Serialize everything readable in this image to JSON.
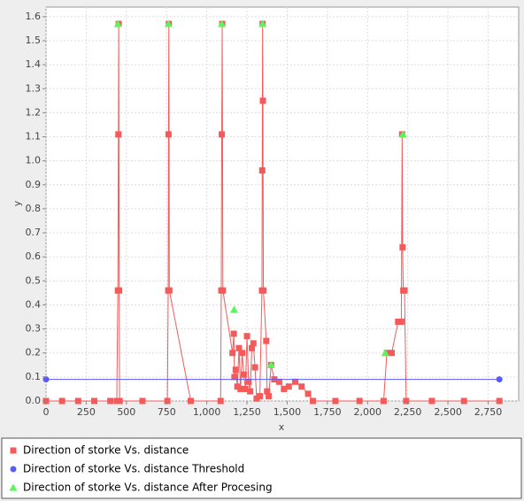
{
  "chart_data": {
    "type": "line",
    "x_label": "x",
    "y_label": "y",
    "xlim": [
      0,
      2940
    ],
    "ylim": [
      0,
      1.64
    ],
    "xticks": [
      0,
      250,
      500,
      750,
      {
        "value": 1000,
        "label": "1,000"
      },
      {
        "value": 1250,
        "label": "1,250"
      },
      {
        "value": 1500,
        "label": "1,500"
      },
      {
        "value": 1750,
        "label": "1,750"
      },
      {
        "value": 2000,
        "label": "2,000"
      },
      {
        "value": 2250,
        "label": "2,250"
      },
      {
        "value": 2500,
        "label": "2,500"
      },
      {
        "value": 2750,
        "label": "2,750"
      }
    ],
    "yticks": [
      {
        "value": 0,
        "label": "0.0"
      },
      0.1,
      0.2,
      0.3,
      0.4,
      0.5,
      0.6,
      0.7,
      0.8,
      0.9,
      {
        "value": 1,
        "label": "1.0"
      },
      1.1,
      1.2,
      1.3,
      1.4,
      1.5,
      1.6
    ],
    "grid": true,
    "series": [
      {
        "name": "Direction of storke Vs. distance",
        "color": "#f55a5a",
        "marker": "square",
        "line": true,
        "x": [
          0,
          100,
          200,
          300,
          400,
          440,
          447,
          450,
          452,
          455,
          458,
          600,
          755,
          760,
          762,
          764,
          767,
          900,
          1086,
          1090,
          1093,
          1096,
          1100,
          1160,
          1168,
          1172,
          1180,
          1190,
          1200,
          1210,
          1220,
          1230,
          1240,
          1250,
          1260,
          1270,
          1280,
          1290,
          1300,
          1310,
          1330,
          1343,
          1345,
          1347,
          1349,
          1352,
          1370,
          1375,
          1385,
          1400,
          1420,
          1450,
          1480,
          1510,
          1550,
          1590,
          1630,
          1660,
          1800,
          1950,
          2100,
          2120,
          2150,
          2190,
          2210,
          2215,
          2218,
          2222,
          2230,
          2240,
          2400,
          2600,
          2820
        ],
        "values": [
          0,
          0,
          0,
          0,
          0,
          0,
          0.46,
          1.11,
          1.57,
          0.46,
          0,
          0,
          0,
          0.46,
          1.11,
          1.57,
          0.46,
          0,
          0,
          0.46,
          1.11,
          1.57,
          0.46,
          0.2,
          0.28,
          0.1,
          0.13,
          0.06,
          0.22,
          0.05,
          0.2,
          0.11,
          0.05,
          0.27,
          0.08,
          0.04,
          0.22,
          0.24,
          0.14,
          0.01,
          0.02,
          0.46,
          0.96,
          1.57,
          1.25,
          0.46,
          0.25,
          0.04,
          0.02,
          0.15,
          0.09,
          0.08,
          0.05,
          0.06,
          0.08,
          0.06,
          0.03,
          0,
          0,
          0,
          0,
          0.2,
          0.2,
          0.33,
          0.33,
          1.11,
          0.64,
          0.46,
          0.46,
          0,
          0,
          0,
          0
        ]
      },
      {
        "name": "Direction of storke Vs. distance  Threshold",
        "color": "#5a5af5",
        "marker": "circle",
        "line": true,
        "x": [
          0,
          2820
        ],
        "values": [
          0.09,
          0.09
        ]
      },
      {
        "name": "Direction of storke Vs. distance  After Procesing",
        "color": "#5af55a",
        "marker": "triangle",
        "line": false,
        "x": [
          447,
          762,
          1093,
          1170,
          1347,
          1400,
          2110,
          2220
        ],
        "values": [
          1.57,
          1.57,
          1.57,
          0.38,
          1.57,
          0.15,
          0.2,
          1.11
        ]
      }
    ]
  }
}
